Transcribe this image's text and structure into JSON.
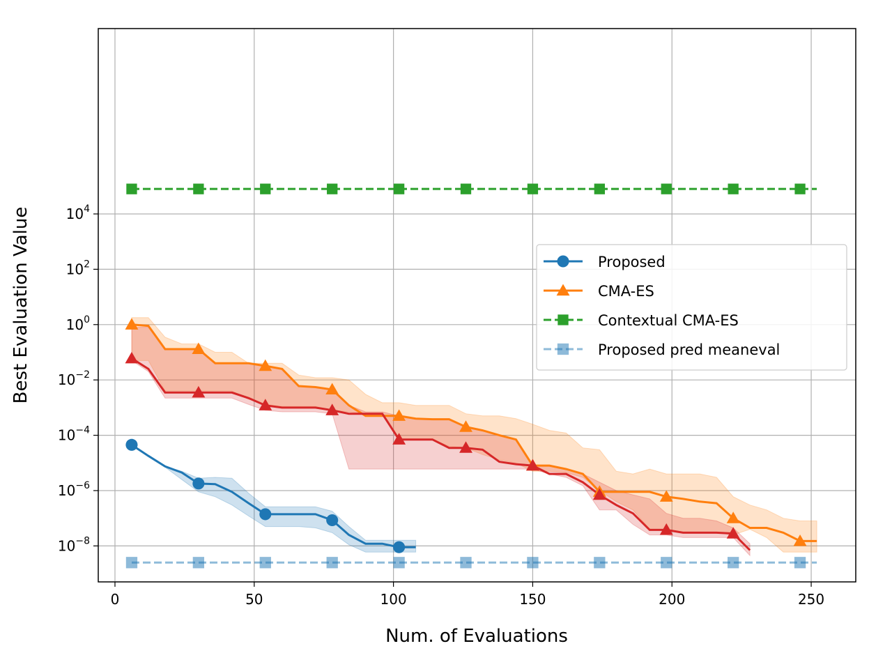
{
  "chart_data": {
    "type": "line",
    "title": "",
    "xlabel": "Num. of Evaluations",
    "ylabel": "Best Evaluation Value",
    "xlim": [
      -6,
      266
    ],
    "ylim_exp": [
      -9.3,
      10.7
    ],
    "yscale": "log",
    "grid": true,
    "legend_placement": "center-right",
    "x_ticks": [
      0,
      50,
      100,
      150,
      200,
      250
    ],
    "y_tick_exponents": [
      -8,
      -6,
      -4,
      -2,
      0,
      2,
      4
    ],
    "series": [
      {
        "name": "Proposed",
        "color": "#1f77b4",
        "marker": "circle",
        "dash": "solid",
        "opacity": 1,
        "marker_x": [
          6,
          30,
          54,
          78,
          102
        ],
        "x": [
          6,
          12,
          18,
          24,
          30,
          36,
          42,
          48,
          54,
          60,
          66,
          72,
          78,
          84,
          90,
          96,
          102,
          108
        ],
        "y": [
          4.5e-05,
          1.8e-05,
          7.5e-06,
          4.5e-06,
          1.8e-06,
          1.7e-06,
          9e-07,
          3.5e-07,
          1.4e-07,
          1.4e-07,
          1.4e-07,
          1.4e-07,
          8.5e-08,
          2.5e-08,
          1.2e-08,
          1.2e-08,
          9e-09,
          9e-09
        ],
        "band_low": [
          4.5e-05,
          1.8e-05,
          7e-06,
          2.5e-06,
          9e-07,
          6e-07,
          3e-07,
          1.2e-07,
          5e-08,
          5e-08,
          5e-08,
          4.5e-08,
          3e-08,
          1.1e-08,
          6e-09,
          6e-09,
          6e-09,
          6e-09
        ],
        "band_high": [
          4.5e-05,
          1.8e-05,
          7.5e-06,
          5e-06,
          2.8e-06,
          3e-06,
          2.8e-06,
          8e-07,
          2.6e-07,
          2.6e-07,
          2.6e-07,
          2.6e-07,
          1.8e-07,
          5e-08,
          1.6e-08,
          1.6e-08,
          1.6e-08,
          1.6e-08
        ]
      },
      {
        "name": "CMA-ES",
        "color": "#ff7f0e",
        "marker": "triangle",
        "dash": "solid",
        "opacity": 1,
        "marker_x": [
          6,
          30,
          54,
          78,
          102,
          126,
          150,
          174,
          198,
          222,
          246
        ],
        "x": [
          6,
          12,
          18,
          24,
          30,
          36,
          42,
          48,
          54,
          60,
          66,
          72,
          78,
          84,
          90,
          96,
          102,
          108,
          114,
          120,
          126,
          132,
          138,
          144,
          150,
          156,
          162,
          168,
          174,
          180,
          186,
          192,
          198,
          204,
          210,
          216,
          222,
          228,
          234,
          240,
          246,
          252
        ],
        "y": [
          1.0,
          0.9,
          0.13,
          0.13,
          0.13,
          0.04,
          0.04,
          0.04,
          0.032,
          0.025,
          0.006,
          0.0055,
          0.0045,
          0.0012,
          0.0005,
          0.0005,
          0.0005,
          0.0004,
          0.00038,
          0.00038,
          0.0002,
          0.00015,
          0.0001,
          7e-05,
          8e-06,
          8e-06,
          6e-06,
          4e-06,
          9e-07,
          9e-07,
          9e-07,
          9e-07,
          6e-07,
          5e-07,
          4e-07,
          3.5e-07,
          1e-07,
          4.5e-08,
          4.5e-08,
          3e-08,
          1.5e-08,
          1.5e-08
        ],
        "band_low": [
          0.05,
          0.05,
          0.004,
          0.004,
          0.004,
          0.004,
          0.004,
          0.002,
          0.0013,
          0.0011,
          0.0011,
          0.0011,
          0.0008,
          0.0007,
          0.0006,
          0.0006,
          7e-05,
          7e-05,
          7e-05,
          4e-05,
          3.5e-05,
          2e-05,
          1.3e-05,
          1e-05,
          5e-06,
          5e-06,
          4.5e-06,
          3e-06,
          1e-06,
          4e-07,
          2e-07,
          4e-08,
          4e-08,
          3e-08,
          3e-08,
          3e-08,
          2.5e-08,
          4e-08,
          2e-08,
          6e-09,
          6e-09,
          6e-09
        ],
        "band_high": [
          1.8,
          1.8,
          0.35,
          0.2,
          0.2,
          0.1,
          0.1,
          0.04,
          0.04,
          0.04,
          0.015,
          0.012,
          0.012,
          0.01,
          0.003,
          0.0015,
          0.0015,
          0.0012,
          0.0012,
          0.0012,
          0.0006,
          0.0005,
          0.0005,
          0.0004,
          0.00025,
          0.00015,
          0.00012,
          3.5e-05,
          3e-05,
          5e-06,
          4e-06,
          6e-06,
          4e-06,
          4e-06,
          4e-06,
          3e-06,
          6e-07,
          3e-07,
          2e-07,
          1e-07,
          8e-08,
          8e-08
        ]
      },
      {
        "name": "Contextual CMA-ES",
        "color": "#2ca02c",
        "marker": "square",
        "dash": "dashed",
        "opacity": 1,
        "marker_x": [
          6,
          30,
          54,
          78,
          102,
          126,
          150,
          174,
          198,
          222,
          246
        ],
        "x": [
          6,
          252
        ],
        "y": [
          80000,
          80000
        ]
      },
      {
        "name": "Proposed pred meaneval",
        "color": "#1f77b4",
        "marker": "square",
        "dash": "dashed",
        "opacity": 0.5,
        "marker_x": [
          6,
          30,
          54,
          78,
          102,
          126,
          150,
          174,
          198,
          222,
          246
        ],
        "x": [
          6,
          252
        ],
        "y": [
          2.5e-09,
          2.5e-09
        ]
      },
      {
        "name": "",
        "color": "#d62728",
        "marker": "triangle",
        "dash": "solid",
        "opacity": 1,
        "marker_x": [
          6,
          30,
          54,
          78,
          102,
          126,
          150,
          174,
          198,
          222
        ],
        "x": [
          6,
          12,
          18,
          24,
          30,
          36,
          42,
          48,
          54,
          60,
          66,
          72,
          78,
          84,
          90,
          96,
          102,
          108,
          114,
          120,
          126,
          132,
          138,
          144,
          150,
          156,
          162,
          168,
          174,
          180,
          186,
          192,
          198,
          204,
          210,
          216,
          222,
          228
        ],
        "y": [
          0.06,
          0.025,
          0.0035,
          0.0035,
          0.0035,
          0.0035,
          0.0035,
          0.0022,
          0.0012,
          0.001,
          0.001,
          0.001,
          0.0008,
          0.0006,
          0.0006,
          0.0006,
          7e-05,
          7e-05,
          7e-05,
          3.5e-05,
          3.5e-05,
          3e-05,
          1.1e-05,
          9e-06,
          8e-06,
          4e-06,
          4e-06,
          2e-06,
          7e-07,
          3e-07,
          1.5e-07,
          3.8e-08,
          3.8e-08,
          3e-08,
          3e-08,
          3e-08,
          2.8e-08,
          7e-09
        ],
        "band_low": [
          0.05,
          0.02,
          0.0022,
          0.0022,
          0.0022,
          0.0022,
          0.0022,
          0.0013,
          0.0008,
          0.0007,
          0.0007,
          0.0007,
          0.0006,
          6e-06,
          6e-06,
          6e-06,
          6e-06,
          6e-06,
          6e-06,
          6e-06,
          6e-06,
          6e-06,
          6e-06,
          6e-06,
          6e-06,
          4e-06,
          3e-06,
          1.5e-06,
          2e-07,
          2e-07,
          6e-08,
          2.5e-08,
          2.5e-08,
          2e-08,
          2e-08,
          2e-08,
          2e-08,
          4.5e-09
        ],
        "band_high": [
          0.8,
          0.8,
          0.13,
          0.13,
          0.13,
          0.04,
          0.04,
          0.04,
          0.035,
          0.025,
          0.006,
          0.0055,
          0.0045,
          0.0012,
          0.0007,
          0.0007,
          0.0005,
          0.0004,
          0.00038,
          0.00038,
          0.0002,
          0.00015,
          0.0001,
          7e-05,
          8e-06,
          8e-06,
          6e-06,
          4e-06,
          2e-06,
          1e-06,
          7e-07,
          5e-07,
          1.5e-07,
          1e-07,
          1e-07,
          8e-08,
          4.5e-08,
          1.2e-08
        ]
      }
    ]
  }
}
